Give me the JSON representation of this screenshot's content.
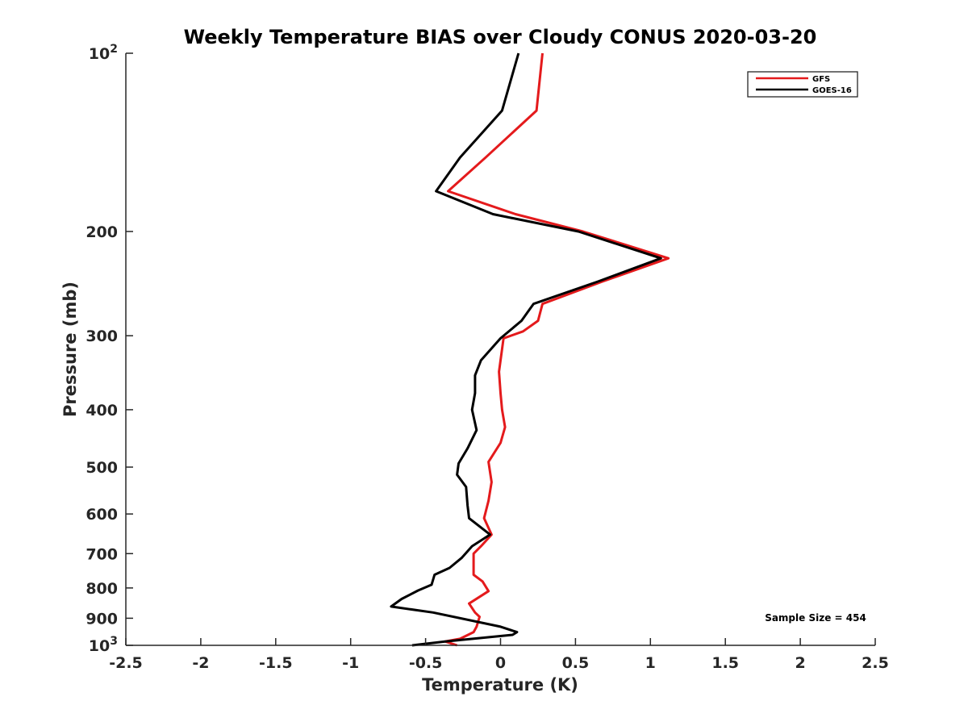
{
  "chart_data": {
    "type": "line",
    "title": "Weekly Temperature BIAS over Cloudy CONUS 2020-03-20",
    "xlabel": "Temperature (K)",
    "ylabel": "Pressure (mb)",
    "xlim": [
      -2.5,
      2.5
    ],
    "ylim": [
      100,
      1000
    ],
    "y_scale": "log",
    "y_reversed": true,
    "x_ticks": [
      "-2.5",
      "-2",
      "-1.5",
      "-1",
      "-0.5",
      "0",
      "0.5",
      "1",
      "1.5",
      "2",
      "2.5"
    ],
    "y_ticks": [
      {
        "value": 100,
        "label": "10",
        "sup": "2"
      },
      {
        "value": 200,
        "label": "200",
        "sup": ""
      },
      {
        "value": 300,
        "label": "300",
        "sup": ""
      },
      {
        "value": 400,
        "label": "400",
        "sup": ""
      },
      {
        "value": 500,
        "label": "500",
        "sup": ""
      },
      {
        "value": 600,
        "label": "600",
        "sup": ""
      },
      {
        "value": 700,
        "label": "700",
        "sup": ""
      },
      {
        "value": 800,
        "label": "800",
        "sup": ""
      },
      {
        "value": 900,
        "label": "900",
        "sup": ""
      },
      {
        "value": 1000,
        "label": "10",
        "sup": "3"
      }
    ],
    "legend_position": "top-right",
    "annotation": "Sample Size = 454",
    "series": [
      {
        "name": "GFS",
        "color": "#e41a1c",
        "points": [
          [
            0.28,
            100
          ],
          [
            0.24,
            125
          ],
          [
            -0.1,
            150
          ],
          [
            -0.35,
            171
          ],
          [
            0.1,
            187
          ],
          [
            0.55,
            200
          ],
          [
            1.12,
            222
          ],
          [
            0.68,
            243
          ],
          [
            0.28,
            265
          ],
          [
            0.25,
            283
          ],
          [
            0.15,
            295
          ],
          [
            0.02,
            303
          ],
          [
            -0.01,
            345
          ],
          [
            0.0,
            375
          ],
          [
            0.01,
            400
          ],
          [
            0.03,
            428
          ],
          [
            0.0,
            455
          ],
          [
            -0.08,
            490
          ],
          [
            -0.06,
            530
          ],
          [
            -0.08,
            570
          ],
          [
            -0.11,
            610
          ],
          [
            -0.06,
            650
          ],
          [
            -0.13,
            680
          ],
          [
            -0.18,
            700
          ],
          [
            -0.18,
            760
          ],
          [
            -0.12,
            780
          ],
          [
            -0.08,
            810
          ],
          [
            -0.21,
            850
          ],
          [
            -0.17,
            880
          ],
          [
            -0.14,
            895
          ],
          [
            -0.16,
            930
          ],
          [
            -0.18,
            950
          ],
          [
            -0.27,
            975
          ],
          [
            -0.37,
            985
          ],
          [
            -0.29,
            1000
          ]
        ]
      },
      {
        "name": "GOES-16",
        "color": "#000000",
        "points": [
          [
            0.12,
            100
          ],
          [
            0.01,
            125
          ],
          [
            -0.27,
            150
          ],
          [
            -0.43,
            171
          ],
          [
            -0.05,
            187
          ],
          [
            0.52,
            200
          ],
          [
            1.07,
            222
          ],
          [
            0.65,
            243
          ],
          [
            0.22,
            265
          ],
          [
            0.14,
            283
          ],
          [
            0.0,
            303
          ],
          [
            -0.13,
            330
          ],
          [
            -0.17,
            350
          ],
          [
            -0.17,
            375
          ],
          [
            -0.19,
            400
          ],
          [
            -0.16,
            433
          ],
          [
            -0.22,
            465
          ],
          [
            -0.28,
            493
          ],
          [
            -0.29,
            515
          ],
          [
            -0.23,
            540
          ],
          [
            -0.22,
            580
          ],
          [
            -0.21,
            610
          ],
          [
            -0.07,
            650
          ],
          [
            -0.19,
            680
          ],
          [
            -0.26,
            712
          ],
          [
            -0.34,
            740
          ],
          [
            -0.44,
            760
          ],
          [
            -0.46,
            790
          ],
          [
            -0.55,
            808
          ],
          [
            -0.66,
            835
          ],
          [
            -0.73,
            860
          ],
          [
            -0.45,
            880
          ],
          [
            0.0,
            930
          ],
          [
            0.11,
            950
          ],
          [
            0.08,
            960
          ],
          [
            -0.37,
            985
          ],
          [
            -0.59,
            1000
          ]
        ]
      }
    ]
  }
}
